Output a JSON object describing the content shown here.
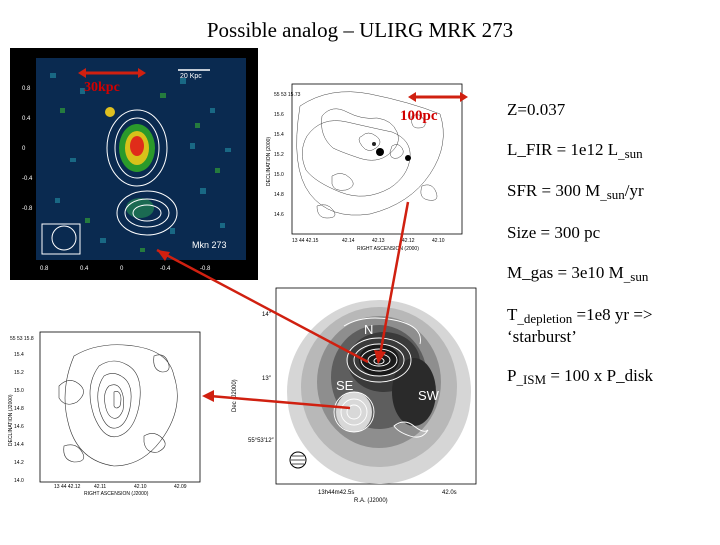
{
  "slide": {
    "title": "Possible analog – ULIRG MRK 273"
  },
  "labels": {
    "kpc_scale": "30kpc",
    "pc_scale": "100pc",
    "panel1_scale": "20 Kpc",
    "panel1_object": "Mkn 273",
    "knot_n": "N",
    "knot_se": "SE",
    "knot_sw": "SW"
  },
  "bullets": [
    {
      "main": "Z=0.037",
      "sub": "",
      "after": ""
    },
    {
      "main": "L_FIR = 1e12 L",
      "sub": "sun",
      "after": ""
    },
    {
      "main": "SFR = 300 M",
      "sub": "sun",
      "after": "/yr"
    },
    {
      "main": "Size = 300 pc",
      "sub": "",
      "after": ""
    },
    {
      "main": "M_gas = 3e10 M",
      "sub": "sun",
      "after": ""
    },
    {
      "main": "T",
      "sub": "depletion",
      "after": " =1e8 yr => ‘starburst’"
    },
    {
      "main": "P",
      "sub": "ISM",
      "after": " = 100 x P_disk"
    }
  ],
  "colors": {
    "arrow": "#d02010",
    "panel_bg": "#0a2a50"
  }
}
